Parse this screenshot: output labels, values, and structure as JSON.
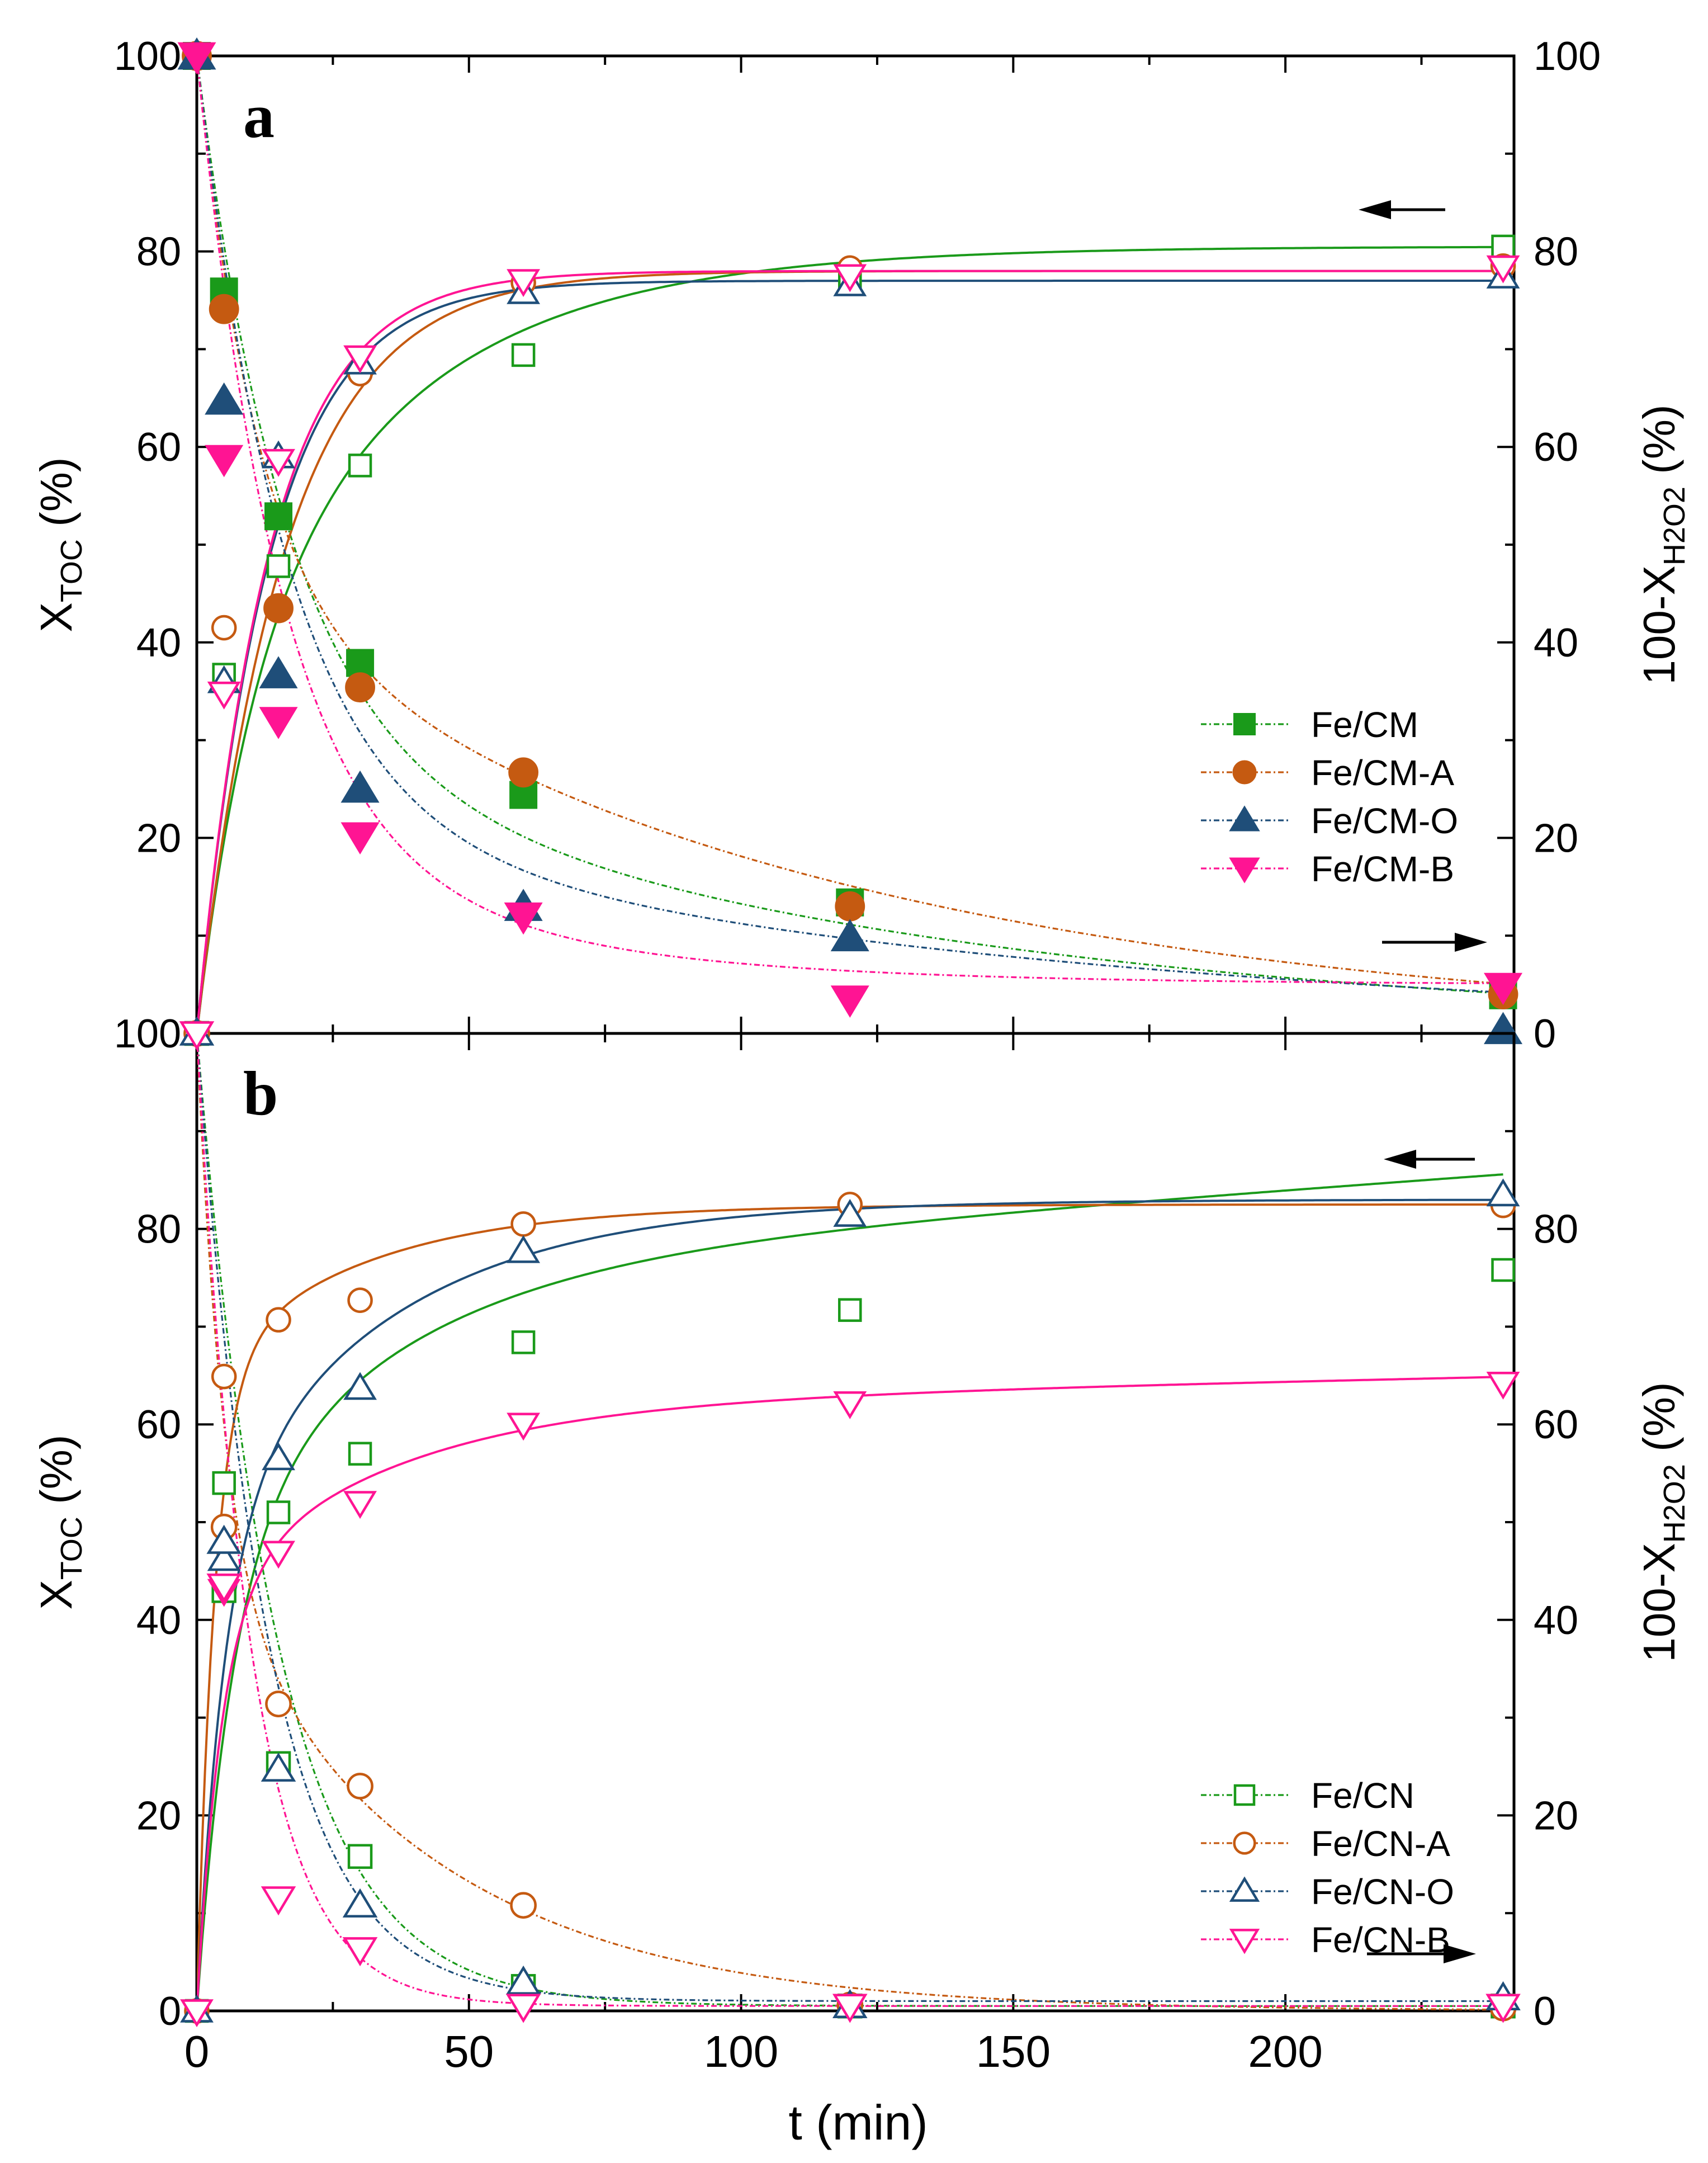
{
  "chart_data": {
    "type": "scatter",
    "xlabel": "t   (min)",
    "x_ticks": [
      "0",
      "50",
      "100",
      "150",
      "200"
    ],
    "xlim": [
      0,
      242
    ],
    "ylim": [
      0,
      100
    ],
    "y_ticks_left": [
      "0",
      "20",
      "40",
      "60",
      "80",
      "100"
    ],
    "y_ticks_right": [
      "0",
      "20",
      "40",
      "60",
      "80",
      "100"
    ],
    "panels": [
      {
        "id": "a",
        "label": "a",
        "ylabel_left": "X",
        "ylabel_left_sub": "TOC",
        "ylabel_left_unit": "(%)",
        "ylabel_right": "100-X",
        "ylabel_right_sub": "H2O2",
        "ylabel_right_unit": "(%)",
        "legend_position": "bottom-right",
        "marker_fill": "filled",
        "series": [
          {
            "name": "Fe/CM",
            "color": "#1a9a1a",
            "marker": "square",
            "toc": {
              "x": [
                0,
                5,
                15,
                30,
                60,
                120,
                240
              ],
              "y": [
                0,
                36.7,
                47.8,
                58.1,
                69.4,
                77.1,
                80.5
              ],
              "fit": {
                "a": 0,
                "b": 35,
                "k1": 0.1,
                "d": 45.5,
                "k2": 0.028
              }
            },
            "h2o2": {
              "x": [
                0,
                5,
                15,
                30,
                60,
                120,
                240
              ],
              "y": [
                100,
                75.9,
                52.9,
                37.9,
                24.4,
                13.4,
                3.9
              ],
              "fit": {
                "a": 0,
                "b": 70,
                "k1": 0.06,
                "d": 30,
                "k2": 0.0083
              }
            }
          },
          {
            "name": "Fe/CM-A",
            "color": "#c55a11",
            "marker": "circle",
            "toc": {
              "x": [
                0,
                5,
                15,
                30,
                60,
                120,
                240
              ],
              "y": [
                0,
                41.5,
                43.5,
                67.5,
                76.8,
                78.3,
                78.5
              ],
              "fit": {
                "a": 0,
                "b": 78,
                "k1": 0.062,
                "d": 0,
                "k2": 0.01
              }
            },
            "h2o2": {
              "x": [
                0,
                5,
                15,
                30,
                60,
                120,
                240
              ],
              "y": [
                100,
                74.1,
                43.5,
                35.4,
                26.7,
                13.0,
                4.0
              ],
              "fit": {
                "a": 0,
                "b": 55,
                "k1": 0.09,
                "d": 45,
                "k2": 0.0091
              }
            }
          },
          {
            "name": "Fe/CM-O",
            "color": "#1f4e79",
            "marker": "triangle-up",
            "toc": {
              "x": [
                0,
                5,
                15,
                30,
                60,
                120,
                240
              ],
              "y": [
                0,
                36.0,
                59.0,
                68.6,
                75.8,
                76.6,
                77.4
              ],
              "fit": {
                "a": 0,
                "b": 77,
                "k1": 0.075,
                "d": 0,
                "k2": 0.01
              }
            },
            "h2o2": {
              "x": [
                0,
                5,
                15,
                30,
                60,
                120,
                240
              ],
              "y": [
                100,
                64.7,
                36.7,
                25.0,
                12.9,
                9.8,
                0.3
              ],
              "fit": {
                "a": 0,
                "b": 78,
                "k1": 0.06,
                "d": 22,
                "k2": 0.0069
              }
            }
          },
          {
            "name": "Fe/CM-B",
            "color": "#ff1493",
            "marker": "triangle-down",
            "toc": {
              "x": [
                0,
                5,
                15,
                30,
                60,
                120,
                240
              ],
              "y": [
                0,
                34.8,
                58.6,
                69.2,
                77.0,
                77.5,
                78.4
              ],
              "fit": {
                "a": 0,
                "b": 78,
                "k1": 0.075,
                "d": 0,
                "k2": 0.01
              }
            },
            "h2o2": {
              "x": [
                0,
                5,
                15,
                30,
                60,
                120,
                240
              ],
              "y": [
                100,
                58.8,
                32.0,
                20.2,
                12.0,
                3.5,
                4.8
              ],
              "fit": {
                "a": 5,
                "b": 80,
                "k1": 0.065,
                "d": 15,
                "k2": 0.02
              }
            }
          }
        ]
      },
      {
        "id": "b",
        "label": "b",
        "ylabel_left": "X",
        "ylabel_left_sub": "TOC",
        "ylabel_left_unit": "(%)",
        "ylabel_right": "100-X",
        "ylabel_right_sub": "H2O2",
        "ylabel_right_unit": "(%)",
        "legend_position": "bottom-right",
        "marker_fill": "open",
        "series": [
          {
            "name": "Fe/CN",
            "color": "#1a9a1a",
            "marker": "square",
            "toc": {
              "x": [
                0,
                5,
                15,
                30,
                60,
                120,
                240
              ],
              "y": [
                0,
                54.0,
                51.0,
                57.0,
                68.4,
                71.7,
                75.8
              ],
              "fit": {
                "a": 0,
                "b": 46,
                "k1": 0.15,
                "d": 30,
                "k2": 0.03,
                "slope": 0.04
              }
            },
            "h2o2": {
              "x": [
                0,
                5,
                15,
                30,
                60,
                120,
                240
              ],
              "y": [
                100,
                43.0,
                25.3,
                15.8,
                2.5,
                0.5,
                0.5
              ],
              "fit": {
                "a": 0.5,
                "b": 99.5,
                "k1": 0.066,
                "d": 0,
                "k2": 0.01
              }
            }
          },
          {
            "name": "Fe/CN-A",
            "color": "#c55a11",
            "marker": "circle",
            "toc": {
              "x": [
                0,
                5,
                15,
                30,
                60,
                120,
                240
              ],
              "y": [
                0,
                64.9,
                70.7,
                72.7,
                80.5,
                82.5,
                82.4
              ],
              "fit": {
                "a": 0,
                "b": 65,
                "k1": 0.3,
                "d": 17.5,
                "k2": 0.035
              }
            },
            "h2o2": {
              "x": [
                0,
                5,
                15,
                30,
                60,
                120,
                240
              ],
              "y": [
                100,
                49.5,
                31.4,
                23.0,
                10.8,
                0.6,
                0.3
              ],
              "fit": {
                "a": 0,
                "b": 55,
                "k1": 0.2,
                "d": 45,
                "k2": 0.0245
              }
            }
          },
          {
            "name": "Fe/CN-O",
            "color": "#1f4e79",
            "marker": "triangle-up",
            "toc": {
              "x": [
                0,
                5,
                15,
                30,
                60,
                120,
                240
              ],
              "y": [
                0,
                46.2,
                56.5,
                63.7,
                77.7,
                81.4,
                83.5
              ],
              "fit": {
                "a": 0,
                "b": 48,
                "k1": 0.2,
                "d": 35,
                "k2": 0.03
              }
            },
            "h2o2": {
              "x": [
                0,
                5,
                15,
                30,
                60,
                120,
                240
              ],
              "y": [
                100,
                48.0,
                24.7,
                10.8,
                2.9,
                0.5,
                1.3
              ],
              "fit": {
                "a": 1,
                "b": 99,
                "k1": 0.075,
                "d": 0,
                "k2": 0.01
              }
            }
          },
          {
            "name": "Fe/CN-B",
            "color": "#ff1493",
            "marker": "triangle-down",
            "toc": {
              "x": [
                0,
                5,
                15,
                30,
                60,
                120,
                240
              ],
              "y": [
                0,
                43.0,
                46.9,
                52.0,
                60.0,
                62.2,
                64.2
              ],
              "fit": {
                "a": 0,
                "b": 42,
                "k1": 0.22,
                "d": 20,
                "k2": 0.03,
                "slope": 0.012
              }
            },
            "h2o2": {
              "x": [
                0,
                5,
                15,
                30,
                60,
                120,
                240
              ],
              "y": [
                100,
                43.5,
                11.5,
                6.3,
                0.5,
                0.5,
                0.5
              ],
              "fit": {
                "a": 0.5,
                "b": 99.5,
                "k1": 0.1,
                "d": 0,
                "k2": 0.01
              }
            }
          }
        ]
      }
    ]
  }
}
